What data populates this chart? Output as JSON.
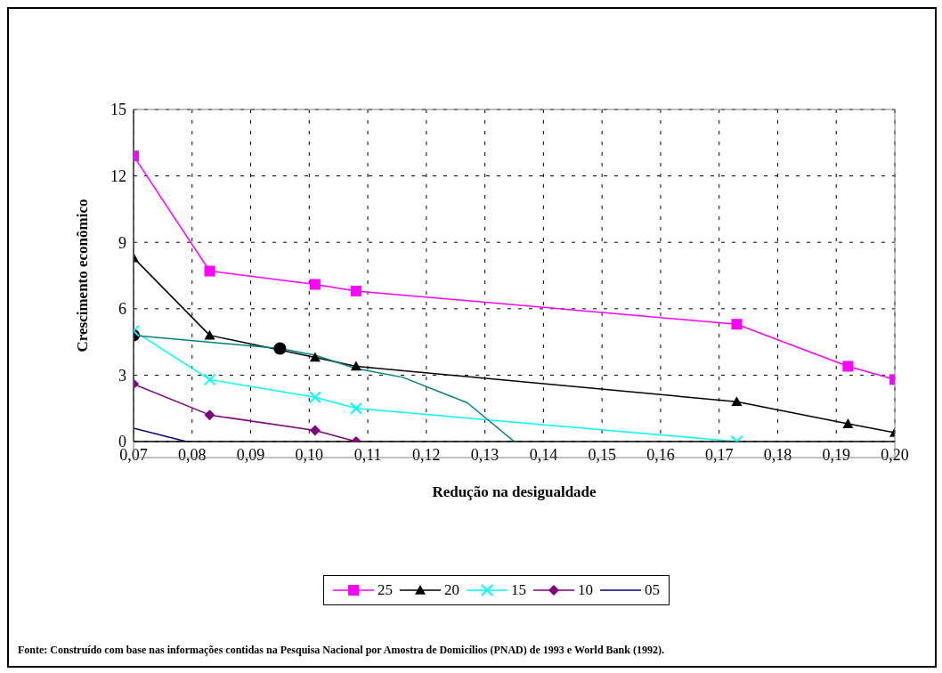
{
  "chart_data": {
    "type": "line",
    "xlabel": "Redução na desigualdade",
    "ylabel": "Crescimento econômico",
    "xlim": [
      0.07,
      0.2
    ],
    "ylim": [
      0,
      15
    ],
    "xticks": [
      {
        "value": 0.07,
        "label": "0,07"
      },
      {
        "value": 0.08,
        "label": "0,08"
      },
      {
        "value": 0.09,
        "label": "0,09"
      },
      {
        "value": 0.1,
        "label": "0,10"
      },
      {
        "value": 0.11,
        "label": "0,11"
      },
      {
        "value": 0.12,
        "label": "0,12"
      },
      {
        "value": 0.13,
        "label": "0,13"
      },
      {
        "value": 0.14,
        "label": "0,14"
      },
      {
        "value": 0.15,
        "label": "0,15"
      },
      {
        "value": 0.16,
        "label": "0,16"
      },
      {
        "value": 0.17,
        "label": "0,17"
      },
      {
        "value": 0.18,
        "label": "0,18"
      },
      {
        "value": 0.19,
        "label": "0,19"
      },
      {
        "value": 0.2,
        "label": "0,20"
      }
    ],
    "yticks": [
      0,
      3,
      6,
      9,
      12,
      15
    ],
    "grid": true,
    "legend": "bottom",
    "line_style": "solid",
    "series": [
      {
        "name": "25",
        "color": "#ff00ff",
        "marker": "square",
        "x": [
          0.07,
          0.083,
          0.101,
          0.108,
          0.173,
          0.192,
          0.2
        ],
        "values": [
          12.9,
          7.7,
          7.1,
          6.8,
          5.3,
          3.4,
          2.8
        ]
      },
      {
        "name": "20",
        "color": "#000000",
        "marker": "triangle",
        "x": [
          0.07,
          0.083,
          0.101,
          0.108,
          0.173,
          0.192,
          0.2
        ],
        "values": [
          8.3,
          4.8,
          3.8,
          3.4,
          1.8,
          0.8,
          0.4
        ]
      },
      {
        "name": "15",
        "color": "#00ffff",
        "marker": "cross",
        "x": [
          0.07,
          0.083,
          0.101,
          0.108,
          0.173
        ],
        "values": [
          5.0,
          2.8,
          2.0,
          1.5,
          0
        ]
      },
      {
        "name": "10",
        "color": "#800080",
        "marker": "diamond",
        "x": [
          0.07,
          0.083,
          0.101,
          0.108
        ],
        "values": [
          2.6,
          1.2,
          0.5,
          0
        ]
      },
      {
        "name": "05",
        "color": "#000080",
        "marker": "none",
        "x": [
          0.07,
          0.079
        ],
        "values": [
          0.6,
          0
        ]
      },
      {
        "color": "#008080",
        "marker": "none",
        "x": [
          0.07,
          0.095,
          0.101,
          0.108,
          0.116,
          0.127,
          0.135
        ],
        "values": [
          4.8,
          4.2,
          3.9,
          3.3,
          2.9,
          1.75,
          0
        ]
      },
      {
        "type": "scatter",
        "color": "#000000",
        "marker": "circle",
        "x": [
          0.07,
          0.095
        ],
        "values": [
          4.8,
          4.2
        ]
      }
    ],
    "annotations": [
      "Fonte: Construído com base nas informações contidas na Pesquisa Nacional por Amostra de Domicílios (PNAD) de 1993 e World Bank (1992)."
    ]
  }
}
